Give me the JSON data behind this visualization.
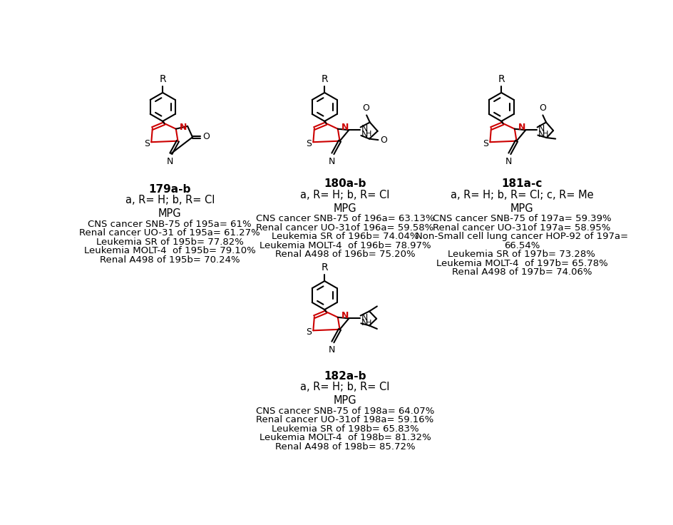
{
  "bg_color": "#ffffff",
  "red_color": "#cc0000",
  "black_color": "#000000",
  "compounds": {
    "179": {
      "label": "179a-b",
      "substituent": "a, R= H; b, R= Cl",
      "mpg_title": "MPG",
      "mpg_lines": [
        "CNS cancer SNB-75 of 195a= 61%",
        "Renal cancer UO-31 of 195a= 61.27%",
        "Leukemia SR of 195b= 77.82%",
        "Leukemia MOLT-4  of 195b= 79.10%",
        "Renal A498 of 195b= 70.24%"
      ]
    },
    "180": {
      "label": "180a-b",
      "substituent": "a, R= H; b, R= Cl",
      "mpg_title": "MPG",
      "mpg_lines": [
        "CNS cancer SNB-75 of 196a= 63.13%",
        "Renal cancer UO-31of 196a= 59.58%",
        "Leukemia SR of 196b= 74.04%",
        "Leukemia MOLT-4  of 196b= 78.97%",
        "Renal A498 of 196b= 75.20%"
      ]
    },
    "181": {
      "label": "181a-c",
      "substituent": "a, R= H; b, R= Cl; c, R= Me",
      "mpg_title": "MPG",
      "mpg_lines": [
        "CNS cancer SNB-75 of 197a= 59.39%",
        "Renal cancer UO-31of 197a= 58.95%",
        "Non-Small cell lung cancer HOP-92 of 197a=",
        "66.54%",
        "Leukemia SR of 197b= 73.28%",
        "Leukemia MOLT-4  of 197b= 65.78%",
        "Renal A498 of 197b= 74.06%"
      ]
    },
    "182": {
      "label": "182a-b",
      "substituent": "a, R= H; b, R= Cl",
      "mpg_title": "MPG",
      "mpg_lines": [
        "CNS cancer SNB-75 of 198a= 64.07%",
        "Renal cancer UO-31of 198a= 59.16%",
        "Leukemia SR of 198b= 65.83%",
        "Leukemia MOLT-4  of 198b= 81.32%",
        "Renal A498 of 198b= 85.72%"
      ]
    }
  }
}
